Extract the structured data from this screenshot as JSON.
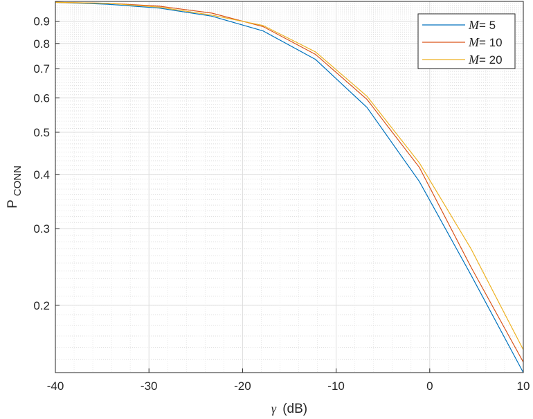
{
  "chart_data": {
    "type": "line",
    "xlabel_symbol": "γ",
    "xlabel_unit": "(dB)",
    "ylabel_main": "P",
    "ylabel_sub": "CONN",
    "xlim": [
      -40,
      10
    ],
    "ylim": [
      0.14,
      1.0
    ],
    "yscale": "log",
    "grid": true,
    "minor_grid": true,
    "legend_position": "top-right",
    "x_ticks": [
      -40,
      -30,
      -20,
      -10,
      0,
      10
    ],
    "x_tick_labels": [
      "-40",
      "-30",
      "-20",
      "-10",
      "0",
      "10"
    ],
    "y_ticks": [
      0.2,
      0.3,
      0.4,
      0.5,
      0.6,
      0.7,
      0.8,
      0.9
    ],
    "y_tick_labels": [
      "0.2",
      "0.3",
      "0.4",
      "0.5",
      "0.6",
      "0.7",
      "0.8",
      "0.9"
    ],
    "x": [
      -40,
      -34.4,
      -28.9,
      -23.3,
      -17.8,
      -12.2,
      -6.7,
      -1.1,
      4.4,
      10
    ],
    "series": [
      {
        "name_italic": "M",
        "name_rest": "= 5",
        "color": "#0072BD",
        "values": [
          0.995,
          0.985,
          0.965,
          0.925,
          0.855,
          0.735,
          0.57,
          0.385,
          0.235,
          0.14
        ]
      },
      {
        "name_italic": "M",
        "name_rest": "= 10",
        "color": "#D95319",
        "values": [
          0.995,
          0.99,
          0.975,
          0.94,
          0.875,
          0.755,
          0.595,
          0.415,
          0.245,
          0.148
        ]
      },
      {
        "name_italic": "M",
        "name_rest": "= 20",
        "color": "#EDB120",
        "values": [
          0.995,
          0.99,
          0.97,
          0.93,
          0.88,
          0.765,
          0.605,
          0.425,
          0.27,
          0.158
        ]
      }
    ]
  }
}
